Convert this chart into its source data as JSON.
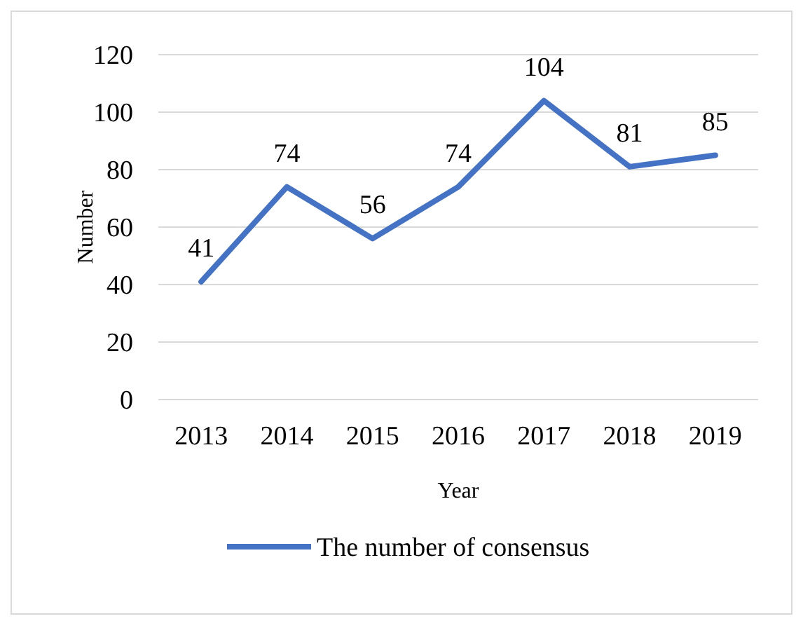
{
  "chart_data": {
    "type": "line",
    "xlabel": "Year",
    "ylabel": "Number",
    "categories": [
      "2013",
      "2014",
      "2015",
      "2016",
      "2017",
      "2018",
      "2019"
    ],
    "series": [
      {
        "name": "The number of consensus",
        "color": "#4472c4",
        "values": [
          41,
          74,
          56,
          74,
          104,
          81,
          85
        ]
      }
    ],
    "ylim": [
      0,
      120
    ],
    "yticks": [
      0,
      20,
      40,
      60,
      80,
      100,
      120
    ],
    "grid": "y",
    "data_labels": true,
    "legend": "bottom",
    "marker": "none",
    "line_style": "solid"
  }
}
